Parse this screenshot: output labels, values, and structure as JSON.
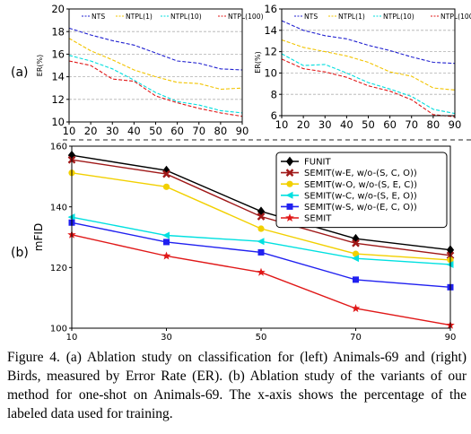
{
  "panel_labels": {
    "a": "(a)",
    "b": "(b)"
  },
  "caption": "Figure 4. (a) Ablation study on classification for (left) Animals-69 and (right) Birds, measured by Error Rate (ER). (b) Ablation study of the variants of our method for one-shot on Animals-69. The x-axis shows the percentage of the labeled data used for training.",
  "chart_data": [
    {
      "type": "line",
      "panel": "(a) left",
      "xlabel": "",
      "ylabel": "ER(%)",
      "x": [
        10,
        20,
        30,
        40,
        50,
        60,
        70,
        80,
        90
      ],
      "xticks": [
        10,
        20,
        30,
        40,
        50,
        60,
        70,
        80,
        90
      ],
      "yticks": [
        10,
        12,
        14,
        16,
        18,
        20
      ],
      "xlim": [
        10,
        90
      ],
      "ylim": [
        10,
        20
      ],
      "grid": "dashed horizontal",
      "legend_position": "top",
      "series": [
        {
          "name": "NTS",
          "color": "#2020d0",
          "values": [
            18.3,
            17.7,
            17.2,
            16.8,
            16.1,
            15.4,
            15.2,
            14.7,
            14.6
          ]
        },
        {
          "name": "NTPL(1)",
          "color": "#f2c400",
          "values": [
            17.4,
            16.3,
            15.5,
            14.6,
            14.0,
            13.5,
            13.4,
            12.9,
            13.0
          ]
        },
        {
          "name": "NTPL(10)",
          "color": "#00dede",
          "values": [
            15.9,
            15.4,
            14.7,
            13.7,
            12.6,
            11.8,
            11.5,
            11.0,
            10.8
          ]
        },
        {
          "name": "NTPL(100)",
          "color": "#e01818",
          "values": [
            15.4,
            15.0,
            13.8,
            13.6,
            12.3,
            11.7,
            11.2,
            10.8,
            10.5
          ]
        }
      ]
    },
    {
      "type": "line",
      "panel": "(a) right",
      "xlabel": "",
      "ylabel": "ER(%)",
      "x": [
        10,
        20,
        30,
        40,
        50,
        60,
        70,
        80,
        90
      ],
      "xticks": [
        10,
        20,
        30,
        40,
        50,
        60,
        70,
        80,
        90
      ],
      "yticks": [
        6,
        8,
        10,
        12,
        14,
        16
      ],
      "xlim": [
        10,
        90
      ],
      "ylim": [
        6,
        16
      ],
      "grid": "dashed horizontal",
      "legend_position": "top",
      "series": [
        {
          "name": "NTS",
          "color": "#2020d0",
          "values": [
            14.9,
            14.0,
            13.5,
            13.2,
            12.6,
            12.1,
            11.5,
            11.0,
            10.9
          ]
        },
        {
          "name": "NTPL(1)",
          "color": "#f2c400",
          "values": [
            13.1,
            12.4,
            12.0,
            11.6,
            11.0,
            10.1,
            9.7,
            8.6,
            8.4
          ]
        },
        {
          "name": "NTPL(10)",
          "color": "#00dede",
          "values": [
            11.8,
            10.7,
            10.8,
            10.0,
            9.1,
            8.5,
            7.8,
            6.6,
            6.2
          ]
        },
        {
          "name": "NTPL(100)",
          "color": "#e01818",
          "values": [
            11.3,
            10.4,
            10.1,
            9.6,
            8.8,
            8.3,
            7.5,
            6.1,
            5.9
          ]
        }
      ]
    },
    {
      "type": "line",
      "panel": "(b)",
      "xlabel": "",
      "ylabel": "mFID",
      "x": [
        10,
        30,
        50,
        70,
        90
      ],
      "xticks": [
        10,
        30,
        50,
        70,
        90
      ],
      "yticks": [
        100,
        120,
        140,
        160
      ],
      "xlim": [
        10,
        90
      ],
      "ylim": [
        100,
        160
      ],
      "grid": "none",
      "legend_position": "top-right",
      "series": [
        {
          "name": "FUNIT",
          "color": "#000000",
          "marker": "diamond",
          "values": [
            157.0,
            152.0,
            138.5,
            129.5,
            125.8
          ]
        },
        {
          "name": "SEMIT(w-E, w/o-(S, C, O))",
          "color": "#a01818",
          "marker": "x",
          "values": [
            155.5,
            150.8,
            136.8,
            128.0,
            124.0
          ]
        },
        {
          "name": "SEMIT(w-O, w/o-(S, E, C))",
          "color": "#f2d000",
          "marker": "o",
          "values": [
            151.2,
            146.6,
            132.8,
            124.5,
            122.5
          ]
        },
        {
          "name": "SEMIT(w-C, w/o-(S, E, O))",
          "color": "#00e0e0",
          "marker": "<",
          "values": [
            136.6,
            130.6,
            128.6,
            123.0,
            121.0
          ]
        },
        {
          "name": "SEMIT(w-S, w/o-(E, C, O))",
          "color": "#2020f0",
          "marker": "s",
          "values": [
            134.8,
            128.4,
            125.0,
            116.0,
            113.5
          ]
        },
        {
          "name": "SEMIT",
          "color": "#e01818",
          "marker": "*",
          "values": [
            130.8,
            123.8,
            118.4,
            106.5,
            101.0
          ]
        }
      ]
    }
  ]
}
